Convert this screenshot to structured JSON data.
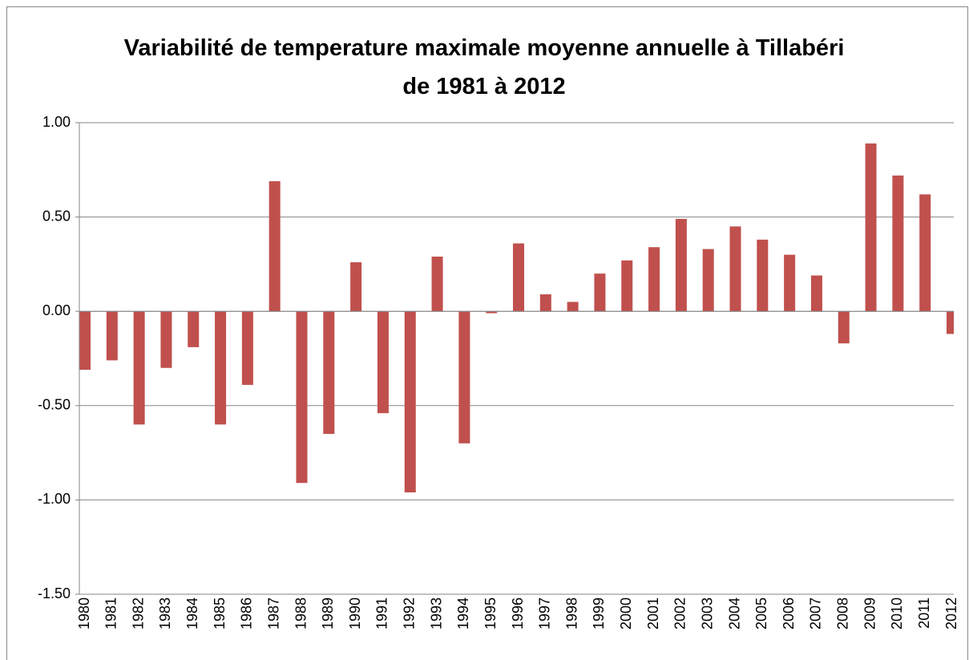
{
  "chart_data": {
    "type": "bar",
    "title": "Variabilité de temperature maximale moyenne annuelle à Tillabéri de 1981 à 2012",
    "categories": [
      "1980",
      "1981",
      "1982",
      "1983",
      "1984",
      "1985",
      "1986",
      "1987",
      "1988",
      "1989",
      "1990",
      "1991",
      "1992",
      "1993",
      "1994",
      "1995",
      "1996",
      "1997",
      "1998",
      "1999",
      "2000",
      "2001",
      "2002",
      "2003",
      "2004",
      "2005",
      "2006",
      "2007",
      "2008",
      "2009",
      "2010",
      "2011",
      "2012"
    ],
    "values": [
      -0.31,
      -0.26,
      -0.6,
      -0.3,
      -0.19,
      -0.6,
      -0.39,
      0.69,
      -0.91,
      -0.65,
      0.26,
      -0.54,
      -0.96,
      0.29,
      -0.7,
      -0.01,
      0.36,
      0.09,
      0.05,
      0.2,
      0.27,
      0.34,
      0.49,
      0.33,
      0.45,
      0.38,
      0.3,
      0.19,
      -0.17,
      0.89,
      0.72,
      0.62,
      -0.12
    ],
    "color": "#c0504d",
    "ylim": [
      -1.5,
      1.0
    ],
    "yticks": [
      {
        "value": -1.5,
        "label": "-1.50"
      },
      {
        "value": -1,
        "label": "-1.00"
      },
      {
        "value": -0.5,
        "label": "-0.50"
      },
      {
        "value": 0,
        "label": "0.00"
      },
      {
        "value": 0.5,
        "label": "0.50"
      },
      {
        "value": 1,
        "label": "1.00"
      }
    ],
    "grid": true
  }
}
